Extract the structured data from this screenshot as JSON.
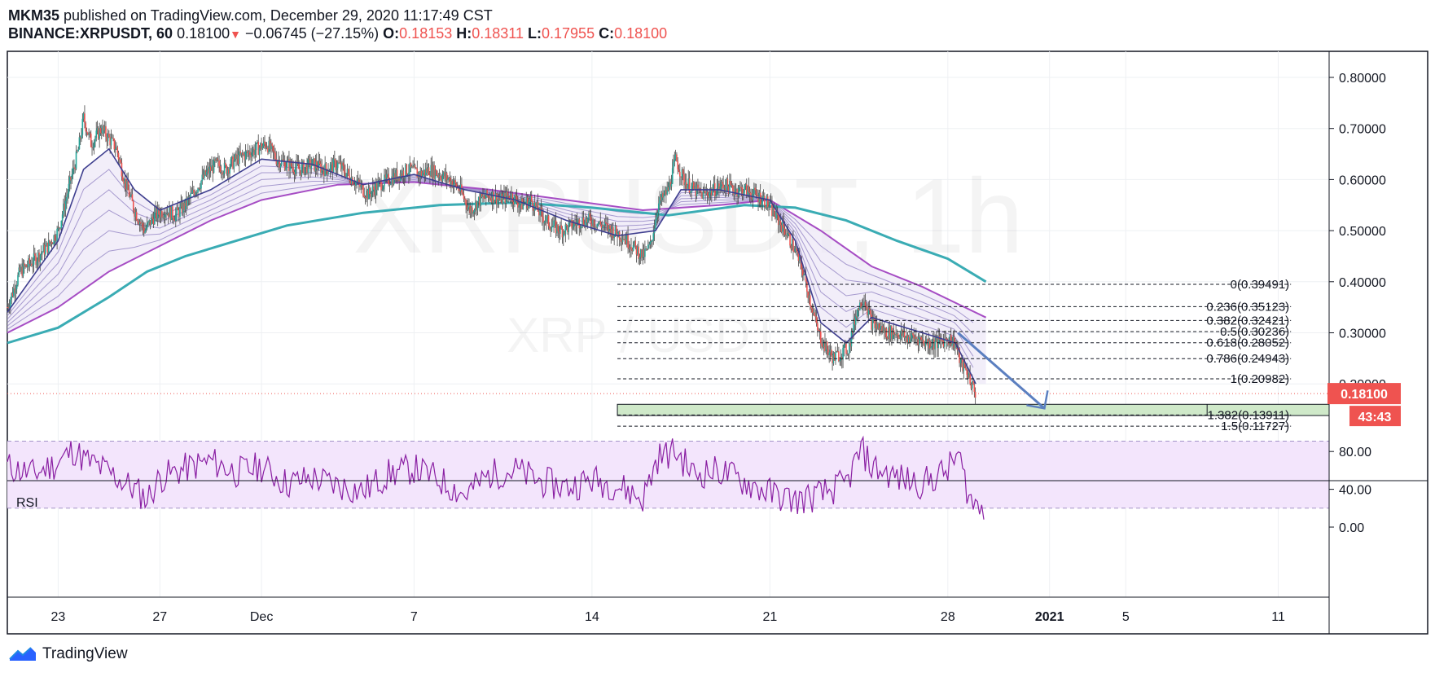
{
  "header": {
    "author": "MKM35",
    "published": "published on TradingView.com, December 29, 2020 11:17:49 CST",
    "symbol": "BINANCE:XRPUSDT, 60",
    "last": "0.18100",
    "change_arrow": "▼",
    "change": "−0.06745 (−27.15%)",
    "o_label": "O:",
    "o_value": "0.18153",
    "h_label": "H:",
    "h_value": "0.18311",
    "l_label": "L:",
    "l_value": "0.17955",
    "c_label": "C:",
    "c_value": "0.18100"
  },
  "watermark": {
    "main": "XRPUSDT, 1h",
    "sub": "XRP / USDT"
  },
  "footer": {
    "brand": "TradingView",
    "logo_icon": "tradingview-logo-icon"
  },
  "colors": {
    "candle_up": "#26a69a",
    "candle_down": "#ef5350",
    "ema_fast": "#3f3f8f",
    "ribbon": "#9a8cc8",
    "ema_slow_1": "#a64dc4",
    "ema_slow_2": "#3aacb4",
    "rsi_line": "#8a1fa3",
    "rsi_band": "#f3e5fc",
    "target_box": "#cfe9c9",
    "arrow": "#5b7fc0",
    "price_label": "#ef5350"
  },
  "chart_data": {
    "type": "line",
    "title": "",
    "symbol": "BINANCE:XRPUSDT",
    "interval": "60",
    "ylim": [
      0.1,
      0.85
    ],
    "y_ticks": [
      "0.80000",
      "0.70000",
      "0.60000",
      "0.50000",
      "0.40000",
      "0.30000",
      "0.20000"
    ],
    "x_ticks": [
      {
        "label": "23",
        "day": 23
      },
      {
        "label": "27",
        "day": 27
      },
      {
        "label": "Dec",
        "day": 31
      },
      {
        "label": "7",
        "day": 37
      },
      {
        "label": "14",
        "day": 44
      },
      {
        "label": "21",
        "day": 51
      },
      {
        "label": "28",
        "day": 58
      },
      {
        "label": "2021",
        "day": 62
      },
      {
        "label": "5",
        "day": 65
      },
      {
        "label": "11",
        "day": 71
      }
    ],
    "x_range_days": [
      21,
      73
    ],
    "price_path": [
      [
        21.0,
        0.35
      ],
      [
        21.5,
        0.42
      ],
      [
        22.0,
        0.44
      ],
      [
        22.6,
        0.47
      ],
      [
        23.0,
        0.5
      ],
      [
        23.4,
        0.58
      ],
      [
        23.8,
        0.66
      ],
      [
        24.0,
        0.72
      ],
      [
        24.3,
        0.67
      ],
      [
        24.7,
        0.7
      ],
      [
        25.0,
        0.68
      ],
      [
        25.3,
        0.66
      ],
      [
        25.6,
        0.6
      ],
      [
        26.0,
        0.54
      ],
      [
        26.4,
        0.5
      ],
      [
        26.8,
        0.53
      ],
      [
        27.2,
        0.54
      ],
      [
        27.6,
        0.53
      ],
      [
        28.0,
        0.55
      ],
      [
        28.4,
        0.58
      ],
      [
        28.8,
        0.61
      ],
      [
        29.2,
        0.63
      ],
      [
        29.6,
        0.62
      ],
      [
        30.0,
        0.64
      ],
      [
        30.4,
        0.65
      ],
      [
        30.8,
        0.66
      ],
      [
        31.2,
        0.67
      ],
      [
        31.6,
        0.64
      ],
      [
        32.0,
        0.63
      ],
      [
        32.5,
        0.62
      ],
      [
        33.0,
        0.63
      ],
      [
        33.5,
        0.62
      ],
      [
        34.0,
        0.63
      ],
      [
        34.4,
        0.61
      ],
      [
        34.8,
        0.59
      ],
      [
        35.2,
        0.57
      ],
      [
        35.6,
        0.59
      ],
      [
        36.0,
        0.6
      ],
      [
        36.4,
        0.61
      ],
      [
        36.8,
        0.62
      ],
      [
        37.2,
        0.61
      ],
      [
        37.6,
        0.62
      ],
      [
        38.0,
        0.61
      ],
      [
        38.4,
        0.6
      ],
      [
        38.8,
        0.58
      ],
      [
        39.2,
        0.54
      ],
      [
        39.6,
        0.56
      ],
      [
        40.0,
        0.57
      ],
      [
        40.4,
        0.56
      ],
      [
        40.8,
        0.57
      ],
      [
        41.2,
        0.55
      ],
      [
        41.6,
        0.56
      ],
      [
        42.0,
        0.53
      ],
      [
        42.4,
        0.51
      ],
      [
        42.8,
        0.5
      ],
      [
        43.2,
        0.51
      ],
      [
        43.6,
        0.52
      ],
      [
        44.0,
        0.52
      ],
      [
        44.4,
        0.51
      ],
      [
        44.8,
        0.5
      ],
      [
        45.2,
        0.49
      ],
      [
        45.6,
        0.47
      ],
      [
        46.0,
        0.45
      ],
      [
        46.3,
        0.47
      ],
      [
        46.6,
        0.55
      ],
      [
        47.0,
        0.58
      ],
      [
        47.3,
        0.64
      ],
      [
        47.6,
        0.6
      ],
      [
        48.0,
        0.58
      ],
      [
        48.4,
        0.57
      ],
      [
        48.8,
        0.58
      ],
      [
        49.2,
        0.59
      ],
      [
        49.6,
        0.58
      ],
      [
        50.0,
        0.58
      ],
      [
        50.4,
        0.57
      ],
      [
        50.8,
        0.56
      ],
      [
        51.2,
        0.53
      ],
      [
        51.6,
        0.5
      ],
      [
        52.0,
        0.46
      ],
      [
        52.3,
        0.42
      ],
      [
        52.6,
        0.36
      ],
      [
        52.9,
        0.3
      ],
      [
        53.2,
        0.27
      ],
      [
        53.5,
        0.25
      ],
      [
        53.8,
        0.26
      ],
      [
        54.1,
        0.27
      ],
      [
        54.4,
        0.34
      ],
      [
        54.7,
        0.37
      ],
      [
        55.0,
        0.32
      ],
      [
        55.3,
        0.31
      ],
      [
        55.6,
        0.3
      ],
      [
        56.0,
        0.3
      ],
      [
        56.4,
        0.29
      ],
      [
        56.8,
        0.29
      ],
      [
        57.2,
        0.28
      ],
      [
        57.6,
        0.28
      ],
      [
        58.0,
        0.29
      ],
      [
        58.3,
        0.28
      ],
      [
        58.5,
        0.24
      ],
      [
        58.8,
        0.22
      ],
      [
        59.0,
        0.19
      ],
      [
        59.1,
        0.181
      ]
    ],
    "series": [
      {
        "type": "ema_slow_2",
        "points": [
          [
            21,
            0.28
          ],
          [
            23,
            0.31
          ],
          [
            25,
            0.37
          ],
          [
            26.5,
            0.42
          ],
          [
            28,
            0.45
          ],
          [
            30,
            0.48
          ],
          [
            32,
            0.51
          ],
          [
            35,
            0.535
          ],
          [
            38,
            0.55
          ],
          [
            41,
            0.555
          ],
          [
            44,
            0.545
          ],
          [
            47,
            0.53
          ],
          [
            50,
            0.55
          ],
          [
            52,
            0.545
          ],
          [
            54,
            0.52
          ],
          [
            56,
            0.48
          ],
          [
            58,
            0.445
          ],
          [
            59.5,
            0.4
          ]
        ]
      },
      {
        "type": "ema_slow_1",
        "points": [
          [
            21,
            0.3
          ],
          [
            23,
            0.35
          ],
          [
            25,
            0.42
          ],
          [
            27,
            0.47
          ],
          [
            29,
            0.52
          ],
          [
            31,
            0.56
          ],
          [
            34,
            0.59
          ],
          [
            37,
            0.595
          ],
          [
            40,
            0.58
          ],
          [
            43,
            0.56
          ],
          [
            46,
            0.54
          ],
          [
            49,
            0.55
          ],
          [
            51,
            0.56
          ],
          [
            53,
            0.5
          ],
          [
            55,
            0.43
          ],
          [
            57,
            0.39
          ],
          [
            59.5,
            0.33
          ]
        ]
      },
      {
        "type": "ema_fast",
        "points": [
          [
            21,
            0.34
          ],
          [
            23,
            0.48
          ],
          [
            24,
            0.62
          ],
          [
            25,
            0.66
          ],
          [
            26,
            0.58
          ],
          [
            27,
            0.54
          ],
          [
            29,
            0.58
          ],
          [
            31,
            0.64
          ],
          [
            33,
            0.63
          ],
          [
            35,
            0.59
          ],
          [
            37,
            0.61
          ],
          [
            39,
            0.58
          ],
          [
            41,
            0.56
          ],
          [
            43,
            0.52
          ],
          [
            45,
            0.49
          ],
          [
            46.5,
            0.5
          ],
          [
            47.5,
            0.58
          ],
          [
            49,
            0.58
          ],
          [
            51,
            0.56
          ],
          [
            52,
            0.48
          ],
          [
            53,
            0.32
          ],
          [
            54,
            0.28
          ],
          [
            55,
            0.33
          ],
          [
            57,
            0.3
          ],
          [
            58.3,
            0.28
          ],
          [
            59.1,
            0.2
          ]
        ]
      }
    ],
    "fib_levels": [
      {
        "label": "0(0.39491)",
        "value": 0.39491
      },
      {
        "label": "0.236(0.35123)",
        "value": 0.35123
      },
      {
        "label": "0.382(0.32421)",
        "value": 0.32421
      },
      {
        "label": "0.5(0.30236)",
        "value": 0.30236
      },
      {
        "label": "0.618(0.28052)",
        "value": 0.28052
      },
      {
        "label": "0.786(0.24943)",
        "value": 0.24943
      },
      {
        "label": "1(0.20982)",
        "value": 0.20982
      },
      {
        "label": "1.382(0.13911)",
        "value": 0.13911
      },
      {
        "label": "1.5(0.11727)",
        "value": 0.11727
      }
    ],
    "fib_x_range_days": [
      45,
      71.5
    ],
    "target_zone": {
      "from_day": 45,
      "to_day": 73,
      "top": 0.16,
      "bottom": 0.138
    },
    "projection_arrow": {
      "from": [
        58.4,
        0.3
      ],
      "to": [
        61.8,
        0.152
      ]
    },
    "price_label": {
      "value": "0.18100",
      "countdown": "43:43"
    },
    "rsi": {
      "label": "RSI",
      "y_ticks": [
        "80.00",
        "40.00",
        "0.00"
      ],
      "band": [
        30,
        70
      ],
      "points": [
        [
          21,
          64
        ],
        [
          22,
          56
        ],
        [
          23,
          68
        ],
        [
          23.6,
          82
        ],
        [
          24,
          72
        ],
        [
          25,
          58
        ],
        [
          26,
          40
        ],
        [
          26.5,
          30
        ],
        [
          27,
          52
        ],
        [
          28,
          62
        ],
        [
          29,
          70
        ],
        [
          30,
          58
        ],
        [
          31,
          64
        ],
        [
          32,
          46
        ],
        [
          33,
          52
        ],
        [
          34,
          44
        ],
        [
          35,
          38
        ],
        [
          36,
          56
        ],
        [
          37,
          62
        ],
        [
          38,
          50
        ],
        [
          39,
          34
        ],
        [
          40,
          56
        ],
        [
          41,
          60
        ],
        [
          42,
          48
        ],
        [
          43,
          42
        ],
        [
          44,
          50
        ],
        [
          45,
          44
        ],
        [
          46,
          30
        ],
        [
          46.6,
          74
        ],
        [
          47.3,
          80
        ],
        [
          48,
          56
        ],
        [
          49,
          60
        ],
        [
          50,
          48
        ],
        [
          51,
          36
        ],
        [
          52,
          28
        ],
        [
          53,
          34
        ],
        [
          54,
          46
        ],
        [
          54.6,
          82
        ],
        [
          55,
          64
        ],
        [
          56,
          52
        ],
        [
          57,
          46
        ],
        [
          58,
          60
        ],
        [
          58.4,
          78
        ],
        [
          58.8,
          36
        ],
        [
          59,
          24
        ],
        [
          59.5,
          22
        ]
      ]
    }
  }
}
